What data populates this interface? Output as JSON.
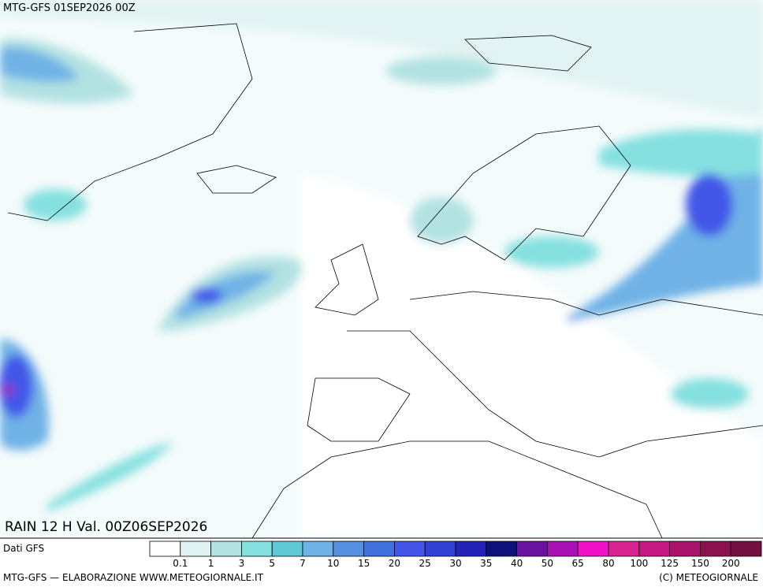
{
  "header": {
    "run": "MTG-GFS 01SEP2026 00Z",
    "field": "RAIN 12 H Val. 00Z06SEP2026"
  },
  "legend": {
    "source": "Dati GFS",
    "thresholds": [
      0.1,
      1,
      3,
      5,
      7,
      10,
      15,
      20,
      25,
      30,
      35,
      40,
      50,
      65,
      80,
      100,
      125,
      150,
      200
    ],
    "colors": [
      "#ffffff",
      "#dff3f3",
      "#b2e2e2",
      "#85e0e0",
      "#5fc9d6",
      "#6fb2e6",
      "#5491e0",
      "#4272dc",
      "#4356e8",
      "#3240d4",
      "#2323b8",
      "#10107c",
      "#6a12a0",
      "#a812b4",
      "#f010c8",
      "#d82490",
      "#c41a82",
      "#a8126a",
      "#8a104e",
      "#741040"
    ]
  },
  "footer": {
    "credit": "MTG-GFS — ELABORAZIONE WWW.METEOGIORNALE.IT",
    "copyright": "(C) METEOGIORNALE"
  }
}
